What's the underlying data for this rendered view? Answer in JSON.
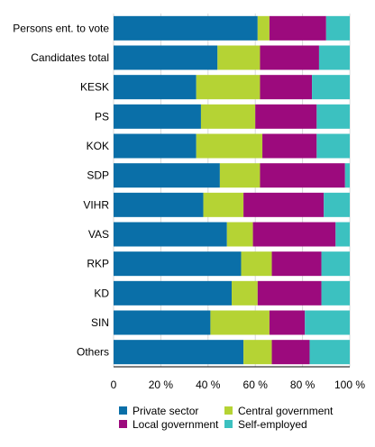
{
  "chart_data": {
    "type": "bar",
    "orientation": "horizontal",
    "stacked": true,
    "categories": [
      "Persons ent. to vote",
      "Candidates total",
      "KESK",
      "PS",
      "KOK",
      "SDP",
      "VIHR",
      "VAS",
      "RKP",
      "KD",
      "SIN",
      "Others"
    ],
    "series": [
      {
        "name": "Private sector",
        "color": "#0a6fa8",
        "values": [
          61,
          44,
          35,
          37,
          35,
          45,
          38,
          48,
          54,
          50,
          41,
          55
        ]
      },
      {
        "name": "Central government",
        "color": "#b5d334",
        "values": [
          5,
          18,
          27,
          23,
          28,
          17,
          17,
          11,
          13,
          11,
          25,
          12
        ]
      },
      {
        "name": "Local government",
        "color": "#9c0a7d",
        "values": [
          24,
          25,
          22,
          26,
          23,
          36,
          34,
          35,
          21,
          27,
          15,
          16
        ]
      },
      {
        "name": "Self-employed",
        "color": "#3cc1c0",
        "values": [
          10,
          13,
          16,
          14,
          14,
          2,
          11,
          6,
          12,
          12,
          19,
          17
        ]
      }
    ],
    "x_ticks": [
      "0",
      "20 %",
      "40 %",
      "60 %",
      "80 %",
      "100 %"
    ],
    "xlim": [
      0,
      100
    ],
    "grid": true,
    "legend_position": "bottom",
    "legend": [
      "Private sector",
      "Central government",
      "Local government",
      "Self-employed"
    ]
  }
}
